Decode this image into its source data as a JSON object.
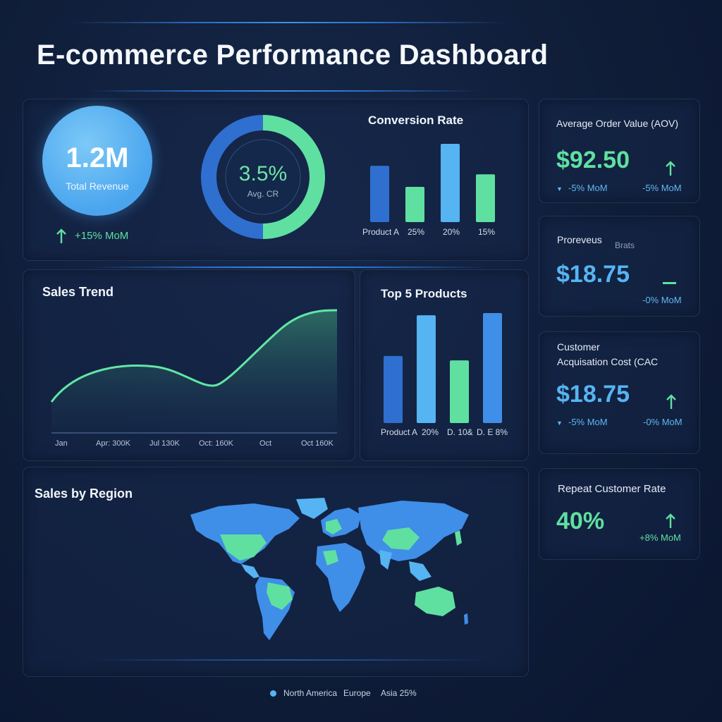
{
  "title": "E-commerce Performance Dashboard",
  "revenue": {
    "value": "1.2M",
    "label": "Total Revenue",
    "change": "+15% MoM"
  },
  "donut": {
    "value": "3.5%",
    "label": "Avg. CR",
    "fraction": 0.5
  },
  "conversion": {
    "title": "Conversion Rate",
    "tick_labels": [
      "Product A",
      "25%",
      "20%",
      "15%"
    ]
  },
  "sales_trend": {
    "title": "Sales Trend",
    "x_labels": [
      "Jan",
      "Apr: 300K",
      "Jul 130K",
      "Oct: 160K",
      "Oct",
      "Oct 160K"
    ]
  },
  "top_products": {
    "title": "Top 5 Products",
    "labels": [
      "Product A",
      "20%",
      "D. 10&",
      "D. E 8%"
    ]
  },
  "region": {
    "title": "Sales by Region",
    "legend": [
      "North America",
      "Europe",
      "Asia 25%"
    ]
  },
  "aov": {
    "label": "Average Order Value (AOV)",
    "value": "$92.50",
    "sub_left": "-5% MoM",
    "sub_right": "-5% MoM"
  },
  "proreveus": {
    "label": "Proreveus",
    "label2": "Brats",
    "value": "$18.75",
    "sub_right": "-0% MoM"
  },
  "cac": {
    "label_line1": "Customer",
    "label_line2": "Acquisation Cost (CAC",
    "value": "$18.75",
    "sub_left": "-5% MoM",
    "sub_right": "-0% MoM"
  },
  "repeat": {
    "label": "Repeat Customer Rate",
    "value": "40%",
    "sub_right": "+8% MoM"
  },
  "colors": {
    "green": "#5fe0a0",
    "blue": "#3f8ee8",
    "light_blue": "#56b4f2",
    "dark_blue": "#2f6fd0"
  },
  "chart_data": [
    {
      "type": "bar",
      "title": "Conversion Rate",
      "categories": [
        "Product A",
        "25%",
        "20%",
        "15%"
      ],
      "values": [
        0.72,
        0.45,
        1.0,
        0.61
      ]
    },
    {
      "type": "area",
      "title": "Sales Trend",
      "x": [
        "Jan",
        "Apr: 300K",
        "Jul 130K",
        "Oct: 160K",
        "Oct",
        "Oct 160K"
      ]
    },
    {
      "type": "bar",
      "title": "Top 5 Products",
      "categories": [
        "Product A",
        "20%",
        "D. 10&",
        "D. E 8%"
      ],
      "values": [
        0.61,
        0.98,
        0.57,
        1.0
      ]
    }
  ]
}
